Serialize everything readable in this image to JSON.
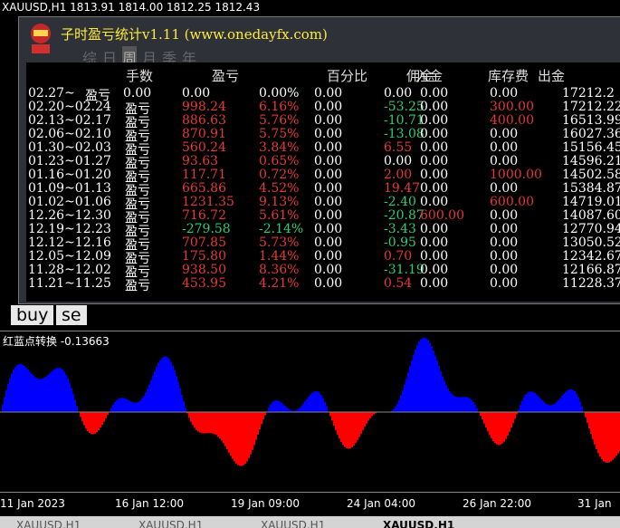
{
  "ticker": "XAUUSD,H1  1813.91 1814.00 1812.25 1812.43",
  "panel": {
    "title": "子时盈亏统计v1.11 (www.onedayfx.com)",
    "tabs": [
      "综",
      "日",
      "周",
      "月",
      "季",
      "年"
    ],
    "active_tab": 2,
    "headers": [
      "手数",
      "盈亏",
      "百分比",
      "佣金",
      "入金",
      "库存费",
      "出金"
    ],
    "tag": "盈亏",
    "rows": [
      [
        "02.27~",
        "0.00",
        "0.00",
        "0.00%",
        "0.00",
        "0.00",
        "0.00",
        "0.00",
        "17212.2"
      ],
      [
        "02.20~02.24",
        "",
        "998.24",
        "6.16%",
        "0.00",
        "-53.25",
        "0.00",
        "300.00",
        "17212.22"
      ],
      [
        "02.13~02.17",
        "",
        "886.63",
        "5.76%",
        "0.00",
        "-10.71",
        "0.00",
        "400.00",
        "16513.99"
      ],
      [
        "02.06~02.10",
        "",
        "870.91",
        "5.75%",
        "0.00",
        "-13.08",
        "0.00",
        "0.00",
        "16027.36"
      ],
      [
        "01.30~02.03",
        "",
        "560.24",
        "3.84%",
        "0.00",
        "6.55",
        "0.00",
        "0.00",
        "15156.45"
      ],
      [
        "01.23~01.27",
        "",
        "93.63",
        "0.65%",
        "0.00",
        "0.00",
        "0.00",
        "0.00",
        "14596.21"
      ],
      [
        "01.16~01.20",
        "",
        "117.71",
        "0.72%",
        "0.00",
        "2.00",
        "0.00",
        "1000.00",
        "14502.58"
      ],
      [
        "01.09~01.13",
        "",
        "665.86",
        "4.52%",
        "0.00",
        "19.47",
        "0.00",
        "0.00",
        "15384.87"
      ],
      [
        "01.02~01.06",
        "",
        "1231.35",
        "9.13%",
        "0.00",
        "-2.40",
        "0.00",
        "600.00",
        "14719.01"
      ],
      [
        "12.26~12.30",
        "",
        "716.72",
        "5.61%",
        "0.00",
        "-20.87",
        "600.00",
        "0.00",
        "14087.60"
      ],
      [
        "12.19~12.23",
        "",
        "-279.58",
        "-2.14%",
        "0.00",
        "-3.43",
        "0.00",
        "0.00",
        "12770.94"
      ],
      [
        "12.12~12.16",
        "",
        "707.85",
        "5.73%",
        "0.00",
        "-0.95",
        "0.00",
        "0.00",
        "13050.52"
      ],
      [
        "12.05~12.09",
        "",
        "175.80",
        "1.44%",
        "0.00",
        "0.70",
        "0.00",
        "0.00",
        "12342.67"
      ],
      [
        "11.28~12.02",
        "",
        "938.50",
        "8.36%",
        "0.00",
        "-31.19",
        "0.00",
        "0.00",
        "12166.87"
      ],
      [
        "11.21~11.25",
        "",
        "453.95",
        "4.21%",
        "0.00",
        "0.54",
        "0.00",
        "0.00",
        "11228.37"
      ]
    ]
  },
  "buttons": [
    "buy",
    "se"
  ],
  "indicator_label": "红蓝点转换 -0.13663",
  "x_labels": [
    "11 Jan 2023",
    "16 Jan 12:00",
    "19 Jan 09:00",
    "24 Jan 04:00",
    "26 Jan 22:00",
    "31 Jan"
  ],
  "bottom_tabs": [
    "XAUUSD,H1",
    "XAUUSD,H1",
    "XAUUSD,H1",
    "XAUUSD,H1"
  ]
}
